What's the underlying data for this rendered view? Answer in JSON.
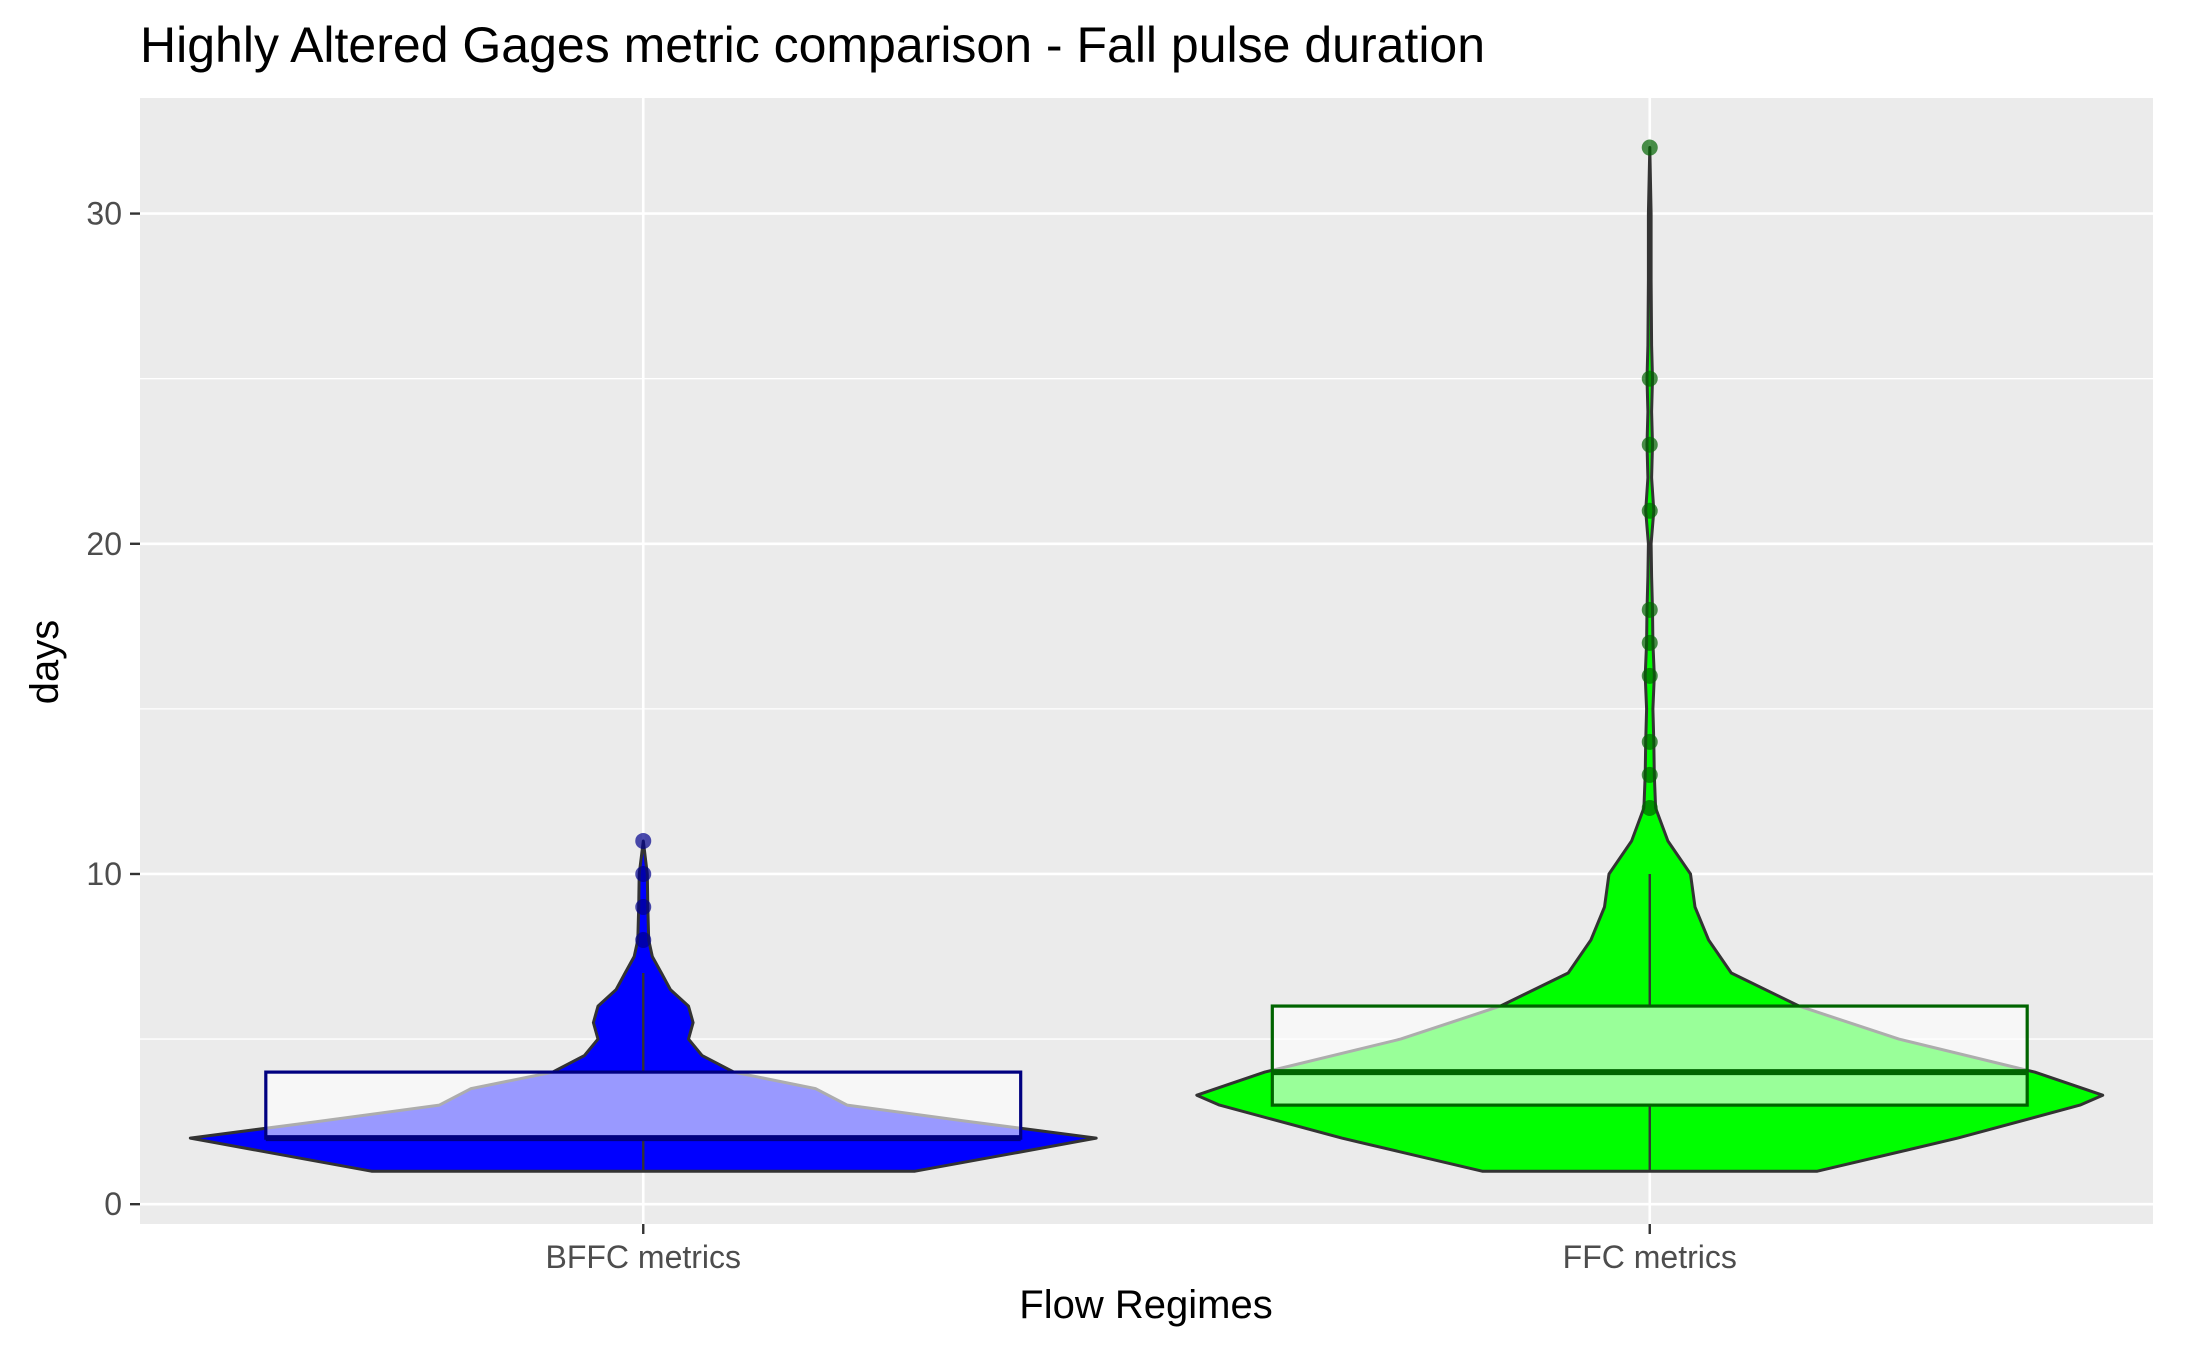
{
  "chart_data": {
    "type": "violin",
    "title": "Highly Altered Gages metric comparison - Fall pulse duration",
    "xlabel": "Flow Regimes",
    "ylabel": "days",
    "ylim": [
      -0.6,
      33.5
    ],
    "yticks": [
      0,
      10,
      20,
      30
    ],
    "grid": true,
    "legend": "none",
    "categories": [
      "BFFC metrics",
      "FFC metrics"
    ],
    "series": [
      {
        "category": "BFFC metrics",
        "fill_color": "#0000ff",
        "box_outline_color": "#000080",
        "point_color": "#00008b",
        "box": {
          "whisker_low": 1,
          "q1": 2,
          "median": 2,
          "q3": 4,
          "whisker_high": 7
        },
        "outliers": [
          8,
          9,
          10,
          11
        ],
        "density": [
          {
            "y": 1.0,
            "w": 0.6
          },
          {
            "y": 1.5,
            "w": 0.8
          },
          {
            "y": 2.0,
            "w": 1.0
          },
          {
            "y": 2.5,
            "w": 0.72
          },
          {
            "y": 3.0,
            "w": 0.45
          },
          {
            "y": 3.5,
            "w": 0.38
          },
          {
            "y": 4.0,
            "w": 0.2
          },
          {
            "y": 4.5,
            "w": 0.13
          },
          {
            "y": 5.0,
            "w": 0.1
          },
          {
            "y": 5.5,
            "w": 0.11
          },
          {
            "y": 6.0,
            "w": 0.1
          },
          {
            "y": 6.5,
            "w": 0.06
          },
          {
            "y": 7.0,
            "w": 0.04
          },
          {
            "y": 7.5,
            "w": 0.02
          },
          {
            "y": 8.0,
            "w": 0.012
          },
          {
            "y": 9.0,
            "w": 0.01
          },
          {
            "y": 10.0,
            "w": 0.009
          },
          {
            "y": 11.0,
            "w": 0.0
          }
        ]
      },
      {
        "category": "FFC metrics",
        "fill_color": "#00ff00",
        "box_outline_color": "#006400",
        "point_color": "#006400",
        "box": {
          "whisker_low": 1,
          "q1": 3,
          "median": 4,
          "q3": 6,
          "whisker_high": 10
        },
        "outliers": [
          12,
          13,
          14,
          16,
          17,
          18,
          21,
          23,
          25,
          32
        ],
        "density": [
          {
            "y": 1.0,
            "w": 0.37
          },
          {
            "y": 2.0,
            "w": 0.68
          },
          {
            "y": 3.0,
            "w": 0.95
          },
          {
            "y": 3.3,
            "w": 1.0
          },
          {
            "y": 4.0,
            "w": 0.85
          },
          {
            "y": 5.0,
            "w": 0.55
          },
          {
            "y": 6.0,
            "w": 0.33
          },
          {
            "y": 7.0,
            "w": 0.18
          },
          {
            "y": 8.0,
            "w": 0.13
          },
          {
            "y": 9.0,
            "w": 0.1
          },
          {
            "y": 10.0,
            "w": 0.09
          },
          {
            "y": 11.0,
            "w": 0.04
          },
          {
            "y": 12.0,
            "w": 0.013
          },
          {
            "y": 13.0,
            "w": 0.01
          },
          {
            "y": 14.0,
            "w": 0.009
          },
          {
            "y": 15.0,
            "w": 0.007
          },
          {
            "y": 16.0,
            "w": 0.01
          },
          {
            "y": 17.0,
            "w": 0.007
          },
          {
            "y": 18.0,
            "w": 0.006
          },
          {
            "y": 19.0,
            "w": 0.004
          },
          {
            "y": 20.0,
            "w": 0.003
          },
          {
            "y": 21.0,
            "w": 0.009
          },
          {
            "y": 22.0,
            "w": 0.004
          },
          {
            "y": 23.0,
            "w": 0.006
          },
          {
            "y": 24.0,
            "w": 0.004
          },
          {
            "y": 25.0,
            "w": 0.006
          },
          {
            "y": 26.0,
            "w": 0.004
          },
          {
            "y": 28.0,
            "w": 0.003
          },
          {
            "y": 30.0,
            "w": 0.003
          },
          {
            "y": 32.0,
            "w": 0.0
          }
        ]
      }
    ]
  }
}
